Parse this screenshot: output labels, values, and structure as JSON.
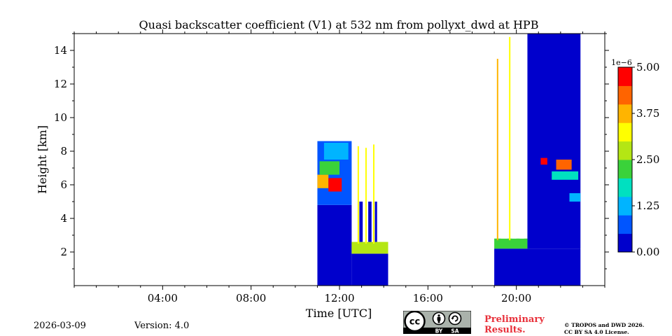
{
  "chart_data": {
    "type": "heatmap",
    "title": "Quasi backscatter coefficient (V1) at 532 nm from pollyxt_dwd at HPB",
    "xlabel": "Time [UTC]",
    "ylabel": "Height [km]",
    "xlim": [
      0,
      24
    ],
    "ylim": [
      0,
      15
    ],
    "x_ticks": [
      {
        "value": 4,
        "label": "04:00"
      },
      {
        "value": 8,
        "label": "08:00"
      },
      {
        "value": 12,
        "label": "12:00"
      },
      {
        "value": 16,
        "label": "16:00"
      },
      {
        "value": 20,
        "label": "20:00"
      }
    ],
    "y_ticks": [
      {
        "value": 2,
        "label": "2"
      },
      {
        "value": 4,
        "label": "4"
      },
      {
        "value": 6,
        "label": "6"
      },
      {
        "value": 8,
        "label": "8"
      },
      {
        "value": 10,
        "label": "10"
      },
      {
        "value": 12,
        "label": "12"
      },
      {
        "value": 14,
        "label": "14"
      }
    ],
    "colorbar": {
      "exponent_label": "1e−6",
      "range": [
        0,
        5
      ],
      "ticks": [
        {
          "value": 0,
          "label": "0.00"
        },
        {
          "value": 1.25,
          "label": "1.25"
        },
        {
          "value": 2.5,
          "label": "2.50"
        },
        {
          "value": 3.75,
          "label": "3.75"
        },
        {
          "value": 5,
          "label": "5.00"
        }
      ]
    },
    "measurement_periods": [
      {
        "start": 11.0,
        "end": 14.2,
        "description": "aerosol layer up to ~8.5 km, cloud at ~6 km near 11:30, boundary layer ~2 km"
      },
      {
        "start": 19.0,
        "end": 22.9,
        "description": "boundary layer ~2.5 km, clouds at ~7 km near 21:30-22:30"
      }
    ],
    "cells": [
      {
        "t0": 11.0,
        "t1": 12.55,
        "h0": 0.0,
        "h1": 2.0,
        "v": 0.35
      },
      {
        "t0": 11.0,
        "t1": 12.55,
        "h0": 2.0,
        "h1": 4.8,
        "v": 0.08
      },
      {
        "t0": 11.0,
        "t1": 12.55,
        "h0": 4.8,
        "h1": 8.6,
        "v": 0.9
      },
      {
        "t0": 11.0,
        "t1": 11.5,
        "h0": 5.8,
        "h1": 6.6,
        "v": 3.6
      },
      {
        "t0": 11.5,
        "t1": 12.1,
        "h0": 5.6,
        "h1": 6.4,
        "v": 4.5
      },
      {
        "t0": 11.1,
        "t1": 12.0,
        "h0": 6.6,
        "h1": 7.4,
        "v": 2.2
      },
      {
        "t0": 11.3,
        "t1": 12.4,
        "h0": 7.5,
        "h1": 8.5,
        "v": 1.4
      },
      {
        "t0": 12.55,
        "t1": 14.2,
        "h0": 0.0,
        "h1": 1.9,
        "v": 0.45
      },
      {
        "t0": 12.55,
        "t1": 14.2,
        "h0": 1.9,
        "h1": 2.6,
        "v": 2.6
      },
      {
        "t0": 12.9,
        "t1": 13.05,
        "h0": 2.6,
        "h1": 5.0,
        "v": 0.15
      },
      {
        "t0": 13.3,
        "t1": 13.45,
        "h0": 2.6,
        "h1": 5.0,
        "v": 0.15
      },
      {
        "t0": 13.6,
        "t1": 13.7,
        "h0": 2.6,
        "h1": 5.0,
        "v": 0.15
      },
      {
        "t0": 19.0,
        "t1": 22.9,
        "h0": 0.0,
        "h1": 2.2,
        "v": 0.25
      },
      {
        "t0": 19.0,
        "t1": 20.5,
        "h0": 2.2,
        "h1": 2.8,
        "v": 2.3
      },
      {
        "t0": 20.5,
        "t1": 22.9,
        "h0": 2.2,
        "h1": 15.0,
        "v": 0.08
      },
      {
        "t0": 21.1,
        "t1": 21.4,
        "h0": 7.2,
        "h1": 7.6,
        "v": 4.6
      },
      {
        "t0": 21.8,
        "t1": 22.5,
        "h0": 6.9,
        "h1": 7.5,
        "v": 4.4
      },
      {
        "t0": 21.6,
        "t1": 22.8,
        "h0": 6.3,
        "h1": 6.8,
        "v": 1.6
      },
      {
        "t0": 22.4,
        "t1": 22.9,
        "h0": 5.0,
        "h1": 5.5,
        "v": 1.1
      }
    ],
    "vertical_streaks": [
      {
        "t": 12.85,
        "h0": 2.5,
        "h1": 8.3,
        "v": 3.2
      },
      {
        "t": 13.2,
        "h0": 2.5,
        "h1": 8.2,
        "v": 3.4
      },
      {
        "t": 13.55,
        "h0": 2.5,
        "h1": 8.4,
        "v": 3.0
      },
      {
        "t": 19.15,
        "h0": 2.7,
        "h1": 13.5,
        "v": 3.6
      },
      {
        "t": 19.7,
        "h0": 2.7,
        "h1": 14.8,
        "v": 3.3
      }
    ],
    "gaps": [
      {
        "t0": 19.3,
        "t1": 19.6,
        "h0": 2.8,
        "h1": 15.0
      },
      {
        "t0": 19.8,
        "t1": 20.0,
        "h0": 2.8,
        "h1": 15.0
      },
      {
        "t0": 20.15,
        "t1": 20.35,
        "h0": 2.8,
        "h1": 15.0
      }
    ]
  },
  "footer": {
    "date": "2026-03-09",
    "version": "Version: 4.0",
    "license_badge": [
      "BY",
      "SA"
    ],
    "preliminary": [
      "Preliminary",
      "Results."
    ],
    "copyright": [
      "© TROPOS and DWD 2026.",
      "CC BY SA 4.0 License."
    ]
  },
  "colors": {
    "colormap": [
      "#0000cc",
      "#0055ff",
      "#00b4ff",
      "#00e0c0",
      "#3ad23a",
      "#b4e614",
      "#ffff00",
      "#ffb400",
      "#ff6400",
      "#ff0000"
    ],
    "preliminary": "#e8303a"
  }
}
